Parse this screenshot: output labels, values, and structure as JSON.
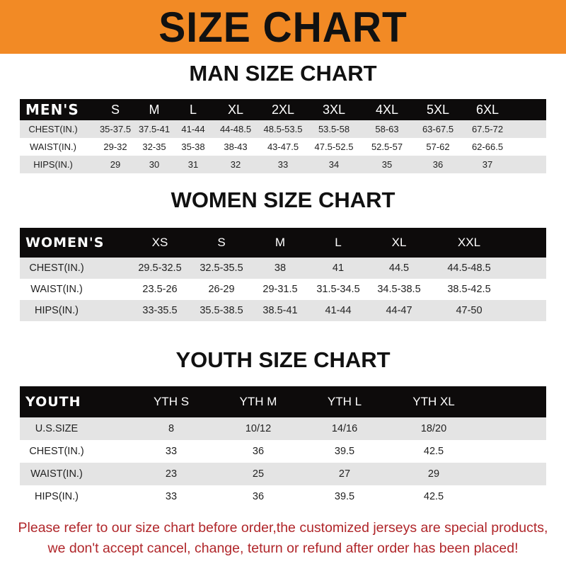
{
  "banner": {
    "title": "SIZE CHART",
    "color": "#f28a25"
  },
  "men": {
    "title": "MAN SIZE CHART",
    "header": [
      "MEN'S",
      "S",
      "M",
      "L",
      "XL",
      "2XL",
      "3XL",
      "4XL",
      "5XL",
      "6XL"
    ],
    "rows": [
      [
        "CHEST(IN.)",
        "35-37.5",
        "37.5-41",
        "41-44",
        "44-48.5",
        "48.5-53.5",
        "53.5-58",
        "58-63",
        "63-67.5",
        "67.5-72"
      ],
      [
        "WAIST(IN.)",
        "29-32",
        "32-35",
        "35-38",
        "38-43",
        "43-47.5",
        "47.5-52.5",
        "52.5-57",
        "57-62",
        "62-66.5"
      ],
      [
        "HIPS(IN.)",
        "29",
        "30",
        "31",
        "32",
        "33",
        "34",
        "35",
        "36",
        "37"
      ]
    ]
  },
  "women": {
    "title": "WOMEN SIZE CHART",
    "header": [
      "WOMEN'S",
      "XS",
      "S",
      "M",
      "L",
      "XL",
      "XXL"
    ],
    "rows": [
      [
        "CHEST(IN.)",
        "29.5-32.5",
        "32.5-35.5",
        "38",
        "41",
        "44.5",
        "44.5-48.5"
      ],
      [
        "WAIST(IN.)",
        "23.5-26",
        "26-29",
        "29-31.5",
        "31.5-34.5",
        "34.5-38.5",
        "38.5-42.5"
      ],
      [
        "HIPS(IN.)",
        "33-35.5",
        "35.5-38.5",
        "38.5-41",
        "41-44",
        "44-47",
        "47-50"
      ]
    ]
  },
  "youth": {
    "title": "YOUTH SIZE CHART",
    "header": [
      "YOUTH",
      "YTH S",
      "YTH M",
      "YTH L",
      "YTH XL"
    ],
    "rows": [
      [
        "U.S.SIZE",
        "8",
        "10/12",
        "14/16",
        "18/20"
      ],
      [
        "CHEST(IN.)",
        "33",
        "36",
        "39.5",
        "42.5"
      ],
      [
        "WAIST(IN.)",
        "23",
        "25",
        "27",
        "29"
      ],
      [
        "HIPS(IN.)",
        "33",
        "36",
        "39.5",
        "42.5"
      ]
    ]
  },
  "note": {
    "line1": "Please refer to our size chart before order,the customized jerseys are special products,",
    "line2": "we don't accept cancel, change, teturn or refund after order has been placed!",
    "color": "#b0262a"
  }
}
